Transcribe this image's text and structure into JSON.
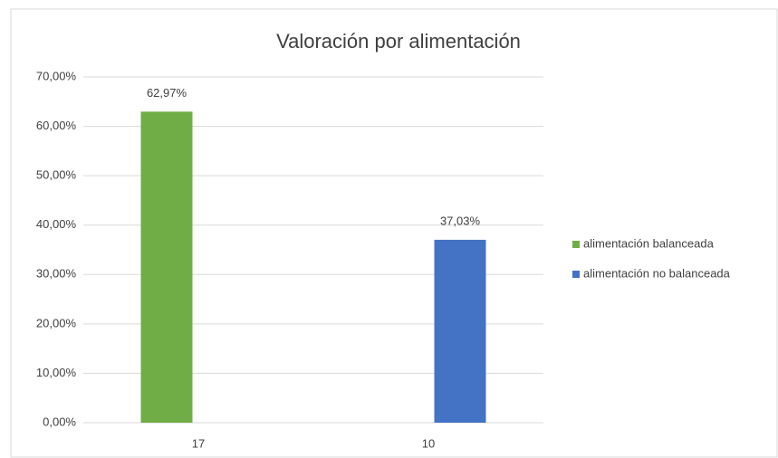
{
  "chart_data": {
    "type": "bar",
    "title": "Valoración por alimentación",
    "categories": [
      "17",
      "10"
    ],
    "series": [
      {
        "name": "alimentación balanceada",
        "color": "#70ad47",
        "values": [
          62.97,
          null
        ],
        "value_labels": [
          "62,97%",
          null
        ]
      },
      {
        "name": "alimentación no balanceada",
        "color": "#4472c4",
        "values": [
          null,
          37.03
        ],
        "value_labels": [
          null,
          "37,03%"
        ]
      }
    ],
    "ylim": [
      0,
      70
    ],
    "yticks": [
      {
        "value": 0,
        "label": "0,00%"
      },
      {
        "value": 10,
        "label": "10,00%"
      },
      {
        "value": 20,
        "label": "20,00%"
      },
      {
        "value": 30,
        "label": "30,00%"
      },
      {
        "value": 40,
        "label": "40,00%"
      },
      {
        "value": 50,
        "label": "50,00%"
      },
      {
        "value": 60,
        "label": "60,00%"
      },
      {
        "value": 70,
        "label": "70,00%"
      }
    ],
    "grid": true,
    "legend": "right"
  }
}
